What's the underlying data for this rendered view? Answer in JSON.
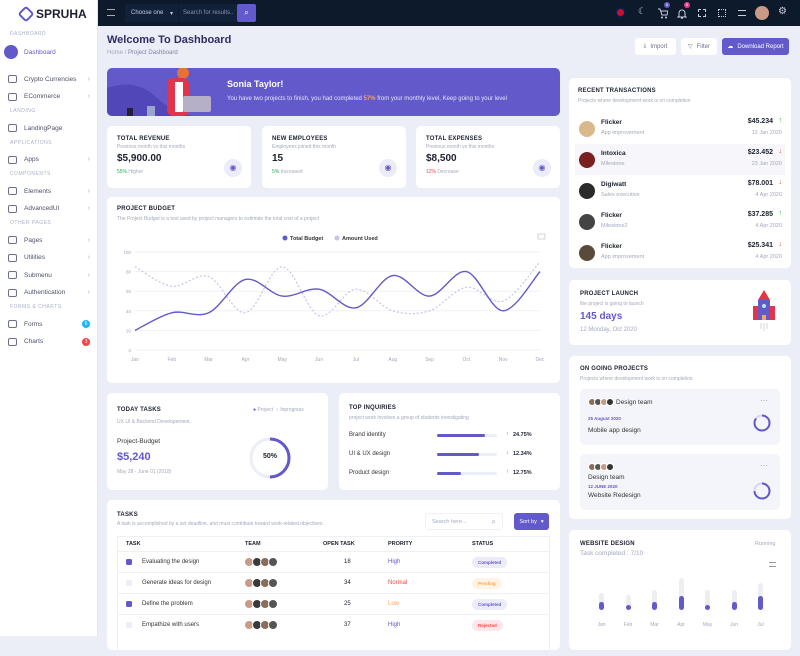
{
  "brand": "SPRUHA",
  "topbar": {
    "select": "Choose one",
    "search_placeholder": "Search for results..",
    "cart_count": "5",
    "notif_count": "5"
  },
  "sidebar": {
    "sections": [
      {
        "title": "DASHBOARD",
        "items": [
          {
            "label": "Dashboard",
            "active": true
          }
        ]
      },
      {
        "title": "",
        "items": [
          {
            "label": "Crypto Currencies",
            "chev": true
          },
          {
            "label": "ECommerce",
            "chev": true
          }
        ]
      },
      {
        "title": "LANDING",
        "items": [
          {
            "label": "LandingPage"
          }
        ]
      },
      {
        "title": "APPLICATIONS",
        "items": [
          {
            "label": "Apps",
            "chev": true
          }
        ]
      },
      {
        "title": "COMPONENTS",
        "items": [
          {
            "label": "Elements",
            "chev": true
          },
          {
            "label": "AdvancedUI",
            "chev": true
          }
        ]
      },
      {
        "title": "OTHER PAGES",
        "items": [
          {
            "label": "Pages",
            "chev": true
          },
          {
            "label": "Utilities",
            "chev": true
          },
          {
            "label": "Submenu",
            "chev": true
          },
          {
            "label": "Authentication",
            "chev": true
          }
        ]
      },
      {
        "title": "FORMS & CHARTS",
        "items": [
          {
            "label": "Forms",
            "badge": "6",
            "badge_color": "#1ab6f5"
          },
          {
            "label": "Charts",
            "badge": "3",
            "badge_color": "#f34343"
          }
        ]
      }
    ]
  },
  "header": {
    "title": "Welcome To Dashboard",
    "breadcrumb": [
      "Home",
      "Project Dashboard"
    ],
    "import": "Import",
    "filter": "Filter",
    "download": "Download Report"
  },
  "banner": {
    "name": "Sonia Taylor!",
    "text_before": "You have two projects to finish, you had completed ",
    "percent": "57%",
    "text_after": " from your monthly level, Keep going to your level"
  },
  "stats": [
    {
      "title": "TOTAL REVENUE",
      "sub": "Previous month vs this months",
      "value": "$5,900.00",
      "change": "55%",
      "change_text": " Higher",
      "color": "#19b159"
    },
    {
      "title": "NEW EMPLOYEES",
      "sub": "Employees joined this month",
      "value": "15",
      "change": "5%",
      "change_text": " Increased",
      "color": "#19b159"
    },
    {
      "title": "TOTAL EXPENSES",
      "sub": "Previous month vs this months",
      "value": "$8,500",
      "change": "12%",
      "change_text": " Decrease",
      "color": "#f34343"
    }
  ],
  "budget": {
    "title": "PROJECT BUDGET",
    "sub": "The Project Budget is a tool used by project managers to estimate the total cost of a project"
  },
  "chart_data": {
    "type": "line",
    "categories": [
      "Jan",
      "Feb",
      "Mar",
      "Apr",
      "May",
      "Jun",
      "Jul",
      "Aug",
      "Sep",
      "Oct",
      "Nov",
      "Dec"
    ],
    "ylim": [
      0,
      100
    ],
    "yticks": [
      0,
      20,
      40,
      60,
      80,
      100
    ],
    "legend": "top",
    "grid": true,
    "series": [
      {
        "name": "Total Budget",
        "color": "#6259ca",
        "style": "solid",
        "values": [
          20,
          38,
          38,
          72,
          55,
          62,
          43,
          76,
          55,
          80,
          40,
          80
        ]
      },
      {
        "name": "Amount Used",
        "color": "#c8c2ef",
        "style": "dashed",
        "values": [
          85,
          65,
          75,
          38,
          85,
          35,
          62,
          40,
          40,
          64,
          50,
          90
        ]
      }
    ]
  },
  "today": {
    "title": "TODAY TASKS",
    "sub": "UX UI & Backend Developement.",
    "legend": [
      "Project",
      "Inprogress"
    ],
    "label": "Project-Budget",
    "value": "$5,240",
    "dates": "May 28 - June 01 (2018)",
    "percent": "50%",
    "progress": 0.5
  },
  "inquiries": {
    "title": "TOP INQUIRIES",
    "sub": "project work involves a group of students investigating",
    "items": [
      {
        "label": "Brand identity",
        "fill": 0.8,
        "pct": "24.75%",
        "dir": "up"
      },
      {
        "label": "UI & UX design",
        "fill": 0.7,
        "pct": "12.34%",
        "dir": "down"
      },
      {
        "label": "Product design",
        "fill": 0.4,
        "pct": "12.75%",
        "dir": "up"
      }
    ]
  },
  "tasks": {
    "title": "TASKS",
    "sub": "A task is accomplished by a set deadline, and must contribute toward work-related objectives.",
    "search_placeholder": "Search here...",
    "sort": "Sort by",
    "columns": [
      "TASK",
      "TEAM",
      "OPEN TASK",
      "PRORITY",
      "STATUS"
    ],
    "rows": [
      {
        "task": "Evaluating the design",
        "checked": true,
        "open": "18",
        "priority": "High",
        "pcolor": "#6259ca",
        "status": "Completed",
        "sbg": "#ecebfa",
        "scolor": "#6259ca"
      },
      {
        "task": "Generate ideas for design",
        "checked": false,
        "open": "34",
        "priority": "Normal",
        "pcolor": "#f34343",
        "status": "Pending",
        "sbg": "#fff3e3",
        "scolor": "#f7a556"
      },
      {
        "task": "Define the problem",
        "checked": true,
        "open": "25",
        "priority": "Low",
        "pcolor": "#f7a556",
        "status": "Completed",
        "sbg": "#ecebfa",
        "scolor": "#6259ca"
      },
      {
        "task": "Empathize with users",
        "checked": false,
        "open": "37",
        "priority": "High",
        "pcolor": "#6259ca",
        "status": "Rejected",
        "sbg": "#fde7ea",
        "scolor": "#f34343"
      }
    ]
  },
  "transactions": {
    "title": "RECENT TRANSACTIONS",
    "sub": "Projects where development work is on completion",
    "items": [
      {
        "name": "Flicker",
        "role": "App improvement",
        "amount": "$45.234",
        "date": "12 Jan 2020",
        "dir": "up"
      },
      {
        "name": "Intoxica",
        "role": "Milestone",
        "amount": "$23.452",
        "date": "23 Jan 2020",
        "dir": "down"
      },
      {
        "name": "Digiwatt",
        "role": "Sales executive",
        "amount": "$78.001",
        "date": "4 Apr 2020",
        "dir": "down"
      },
      {
        "name": "Flicker",
        "role": "Milestone2",
        "amount": "$37.285",
        "date": "4 Apr 2020",
        "dir": "up"
      },
      {
        "name": "Flicker",
        "role": "App improvement",
        "amount": "$25.341",
        "date": "4 Apr 2020",
        "dir": "down"
      }
    ]
  },
  "launch": {
    "title": "PROJECT LAUNCH",
    "sub": "the project is going to launch",
    "days": "145 days",
    "date": "12 Monday, Oct 2020"
  },
  "ongoing": {
    "title": "ON GOING PROJECTS",
    "sub": "Projects where development work is on completion",
    "items": [
      {
        "team": "Design team",
        "date": "25 August 2020",
        "name": "Mobile app design"
      },
      {
        "team": "Design team",
        "date": "12 JUNE 2020",
        "name": "Website Redesign"
      }
    ]
  },
  "website": {
    "title": "WEBSITE DESIGN",
    "status": "Running",
    "sub": "Task completed : 7/10",
    "months": [
      "Jan",
      "Feb",
      "Mar",
      "Apr",
      "May",
      "Jun",
      "Jul"
    ],
    "totals": [
      0.5,
      0.45,
      0.6,
      0.95,
      0.6,
      0.6,
      0.8
    ],
    "values": [
      0.25,
      0.15,
      0.25,
      0.4,
      0.15,
      0.25,
      0.4
    ]
  }
}
